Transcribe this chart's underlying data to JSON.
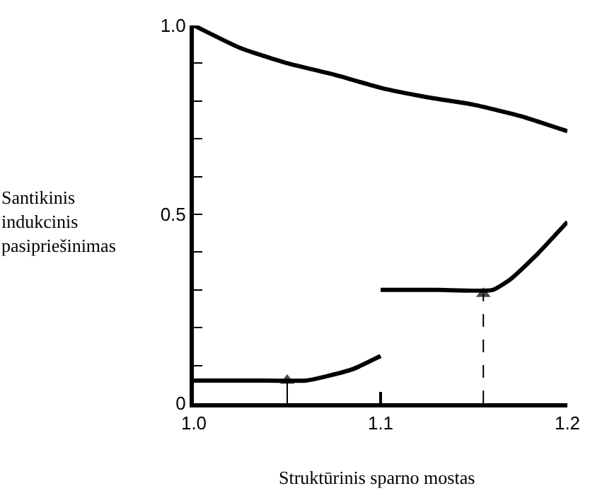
{
  "chart_data": {
    "type": "line",
    "xlabel": "Struktūrinis sparno mostas",
    "ylabel": "Santikinis\nindukcinis\npasipriešinimas",
    "xlim": [
      1.0,
      1.2
    ],
    "xticks": [
      {
        "value": 1.0,
        "label": "1.0"
      },
      1.1,
      1.2
    ],
    "ylim": [
      0,
      1.0
    ],
    "yticks": [
      0,
      {
        "value": 0.1,
        "label": null
      },
      {
        "value": 0.2,
        "label": null
      },
      {
        "value": 0.3,
        "label": null
      },
      {
        "value": 0.4,
        "label": null
      },
      0.5,
      {
        "value": 0.6,
        "label": null
      },
      {
        "value": 0.7,
        "label": null
      },
      {
        "value": 0.8,
        "label": null
      },
      {
        "value": 0.9,
        "label": null
      },
      {
        "value": 1.0,
        "label": "1.0"
      }
    ],
    "marker": "none",
    "line_style": "solid",
    "series": [
      {
        "color": "#000000",
        "x": [
          1.0,
          1.025,
          1.05,
          1.075,
          1.1,
          1.125,
          1.15,
          1.175,
          1.2
        ],
        "values": [
          1.0,
          0.94,
          0.9,
          0.87,
          0.835,
          0.81,
          0.79,
          0.76,
          0.72
        ]
      },
      {
        "color": "#000000",
        "x": [
          1.0,
          1.03,
          1.06,
          1.07,
          1.085,
          1.1
        ],
        "values": [
          0.06,
          0.06,
          0.06,
          0.07,
          0.09,
          0.125
        ]
      },
      {
        "color": "#000000",
        "x": [
          1.1,
          1.13,
          1.16,
          1.17,
          1.183,
          1.2
        ],
        "values": [
          0.3,
          0.3,
          0.3,
          0.33,
          0.39,
          0.48
        ]
      },
      {
        "color": "#000000",
        "x": [
          1.05,
          1.05
        ],
        "values": [
          0,
          0.06
        ],
        "marker": "triangle"
      },
      {
        "color": "#000000",
        "x": [
          1.155,
          1.155
        ],
        "values": [
          0,
          0.29
        ],
        "marker": "triangle",
        "line_style": "dashed"
      }
    ]
  }
}
